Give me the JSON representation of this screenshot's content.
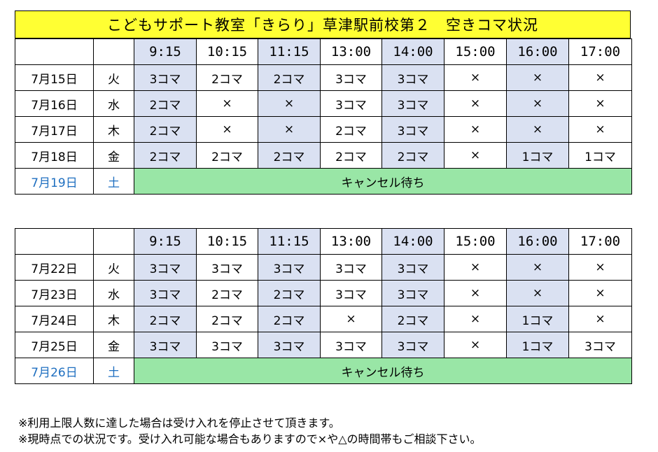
{
  "title": "こどもサポート教室「きらり」草津駅前校第２　空きコマ状況",
  "times": [
    "9:15",
    "10:15",
    "11:15",
    "13:00",
    "14:00",
    "15:00",
    "16:00",
    "17:00"
  ],
  "weeks": [
    {
      "rows": [
        {
          "date": "7月15日",
          "day": "火",
          "slots": [
            "3コマ",
            "2コマ",
            "2コマ",
            "3コマ",
            "3コマ",
            "×",
            "×",
            "×"
          ]
        },
        {
          "date": "7月16日",
          "day": "水",
          "slots": [
            "2コマ",
            "×",
            "×",
            "3コマ",
            "3コマ",
            "×",
            "×",
            "×"
          ]
        },
        {
          "date": "7月17日",
          "day": "木",
          "slots": [
            "2コマ",
            "×",
            "×",
            "2コマ",
            "3コマ",
            "×",
            "×",
            "×"
          ]
        },
        {
          "date": "7月18日",
          "day": "金",
          "slots": [
            "2コマ",
            "2コマ",
            "2コマ",
            "2コマ",
            "2コマ",
            "×",
            "1コマ",
            "1コマ"
          ]
        }
      ],
      "saturday": {
        "date": "7月19日",
        "day": "土",
        "note": "キャンセル待ち"
      }
    },
    {
      "rows": [
        {
          "date": "7月22日",
          "day": "火",
          "slots": [
            "3コマ",
            "3コマ",
            "3コマ",
            "3コマ",
            "3コマ",
            "×",
            "×",
            "×"
          ]
        },
        {
          "date": "7月23日",
          "day": "水",
          "slots": [
            "3コマ",
            "2コマ",
            "2コマ",
            "3コマ",
            "3コマ",
            "×",
            "×",
            "×"
          ]
        },
        {
          "date": "7月24日",
          "day": "木",
          "slots": [
            "2コマ",
            "2コマ",
            "2コマ",
            "×",
            "2コマ",
            "×",
            "1コマ",
            "×"
          ]
        },
        {
          "date": "7月25日",
          "day": "金",
          "slots": [
            "3コマ",
            "3コマ",
            "3コマ",
            "3コマ",
            "3コマ",
            "×",
            "1コマ",
            "3コマ"
          ]
        }
      ],
      "saturday": {
        "date": "7月26日",
        "day": "土",
        "note": "キャンセル待ち"
      }
    }
  ],
  "notes": [
    "※利用上限人数に達した場合は受け入れを停止させて頂きます。",
    "※現時点での状況です。受け入れ可能な場合もありますので×や△の時間帯もご相談下さい。"
  ],
  "colors": {
    "title_bg": "#ffff33",
    "shaded_column": "#dae1f2",
    "waitlist_bg": "#99e6a6",
    "saturday_text": "#1f6fc0"
  }
}
